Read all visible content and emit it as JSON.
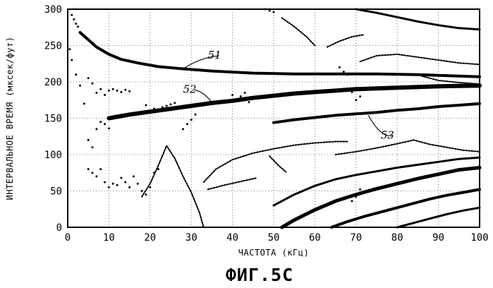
{
  "chart_data": {
    "type": "scatter",
    "title": "",
    "figure_caption": "ФИГ.5С",
    "xlabel": "ЧАСТОТА (кГц)",
    "ylabel": "ИНТЕРВАЛЬНОЕ ВРЕМЯ (мксек/фут)",
    "xlim": [
      0,
      100
    ],
    "ylim": [
      0,
      300
    ],
    "x_ticks": [
      0,
      10,
      20,
      30,
      40,
      50,
      60,
      70,
      80,
      90,
      100
    ],
    "y_ticks": [
      0,
      50,
      100,
      150,
      200,
      250,
      300
    ],
    "grid": true,
    "colors": {
      "ink": "#000000",
      "grid": "#555555",
      "background": "#ffffff"
    },
    "annotations": [
      {
        "label": "51",
        "x": 34,
        "y": 232,
        "target": [
          28,
          218
        ]
      },
      {
        "label": "52",
        "x": 28,
        "y": 185,
        "target": [
          35,
          172
        ]
      },
      {
        "label": "53",
        "x": 76,
        "y": 122,
        "target": [
          73,
          154
        ]
      }
    ],
    "series": [
      {
        "name": "51",
        "weight": 4,
        "points": [
          [
            3,
            268
          ],
          [
            5,
            258
          ],
          [
            7,
            248
          ],
          [
            10,
            238
          ],
          [
            13,
            231
          ],
          [
            17,
            226
          ],
          [
            22,
            221
          ],
          [
            28,
            218
          ],
          [
            35,
            215
          ],
          [
            45,
            212
          ],
          [
            55,
            211
          ],
          [
            65,
            211
          ],
          [
            75,
            211
          ],
          [
            85,
            210
          ],
          [
            95,
            208
          ],
          [
            100,
            207
          ]
        ]
      },
      {
        "name": "52",
        "weight": 6,
        "points": [
          [
            10,
            150
          ],
          [
            15,
            155
          ],
          [
            20,
            159
          ],
          [
            25,
            163
          ],
          [
            30,
            167
          ],
          [
            35,
            171
          ],
          [
            40,
            174
          ],
          [
            45,
            178
          ],
          [
            50,
            181
          ],
          [
            55,
            184
          ],
          [
            60,
            186
          ],
          [
            65,
            188
          ],
          [
            70,
            190
          ],
          [
            75,
            191
          ],
          [
            80,
            192
          ],
          [
            85,
            193
          ],
          [
            90,
            194
          ],
          [
            100,
            195
          ]
        ]
      },
      {
        "name": "53",
        "weight": 4,
        "points": [
          [
            50,
            144
          ],
          [
            55,
            148
          ],
          [
            60,
            151
          ],
          [
            65,
            154
          ],
          [
            70,
            156
          ],
          [
            75,
            158
          ],
          [
            80,
            161
          ],
          [
            85,
            163
          ],
          [
            90,
            166
          ],
          [
            95,
            168
          ],
          [
            100,
            170
          ]
        ]
      },
      {
        "name": "mode-top",
        "weight": 3,
        "points": [
          [
            70,
            300
          ],
          [
            75,
            295
          ],
          [
            80,
            289
          ],
          [
            85,
            283
          ],
          [
            90,
            278
          ],
          [
            95,
            274
          ],
          [
            100,
            272
          ]
        ]
      },
      {
        "name": "mode-band-a",
        "weight": 3,
        "points": [
          [
            50,
            30
          ],
          [
            55,
            45
          ],
          [
            60,
            57
          ],
          [
            65,
            66
          ],
          [
            70,
            72
          ],
          [
            75,
            77
          ],
          [
            80,
            82
          ],
          [
            85,
            86
          ],
          [
            90,
            90
          ],
          [
            95,
            94
          ],
          [
            100,
            96
          ]
        ]
      },
      {
        "name": "mode-band-b",
        "weight": 5,
        "points": [
          [
            52,
            0
          ],
          [
            55,
            10
          ],
          [
            60,
            24
          ],
          [
            65,
            36
          ],
          [
            70,
            45
          ],
          [
            75,
            53
          ],
          [
            80,
            60
          ],
          [
            85,
            67
          ],
          [
            90,
            73
          ],
          [
            95,
            79
          ],
          [
            100,
            82
          ]
        ]
      },
      {
        "name": "mode-band-c",
        "weight": 4,
        "points": [
          [
            64,
            0
          ],
          [
            68,
            8
          ],
          [
            72,
            15
          ],
          [
            76,
            21
          ],
          [
            80,
            27
          ],
          [
            84,
            33
          ],
          [
            88,
            39
          ],
          [
            92,
            44
          ],
          [
            96,
            48
          ],
          [
            100,
            52
          ]
        ]
      },
      {
        "name": "mode-band-d",
        "weight": 3,
        "points": [
          [
            80,
            0
          ],
          [
            84,
            6
          ],
          [
            88,
            12
          ],
          [
            92,
            18
          ],
          [
            96,
            23
          ],
          [
            100,
            27
          ]
        ]
      },
      {
        "name": "mode-mid",
        "weight": 2,
        "points": [
          [
            33,
            62
          ],
          [
            36,
            80
          ],
          [
            40,
            93
          ],
          [
            45,
            102
          ],
          [
            50,
            108
          ],
          [
            55,
            113
          ],
          [
            60,
            116
          ],
          [
            65,
            118
          ],
          [
            68,
            118
          ]
        ]
      },
      {
        "name": "mode-low-mid",
        "weight": 2,
        "points": [
          [
            34,
            52
          ],
          [
            38,
            58
          ],
          [
            42,
            63
          ],
          [
            46,
            68
          ]
        ]
      },
      {
        "name": "mode-right-a",
        "weight": 2,
        "points": [
          [
            65,
            100
          ],
          [
            70,
            104
          ],
          [
            75,
            109
          ],
          [
            80,
            115
          ],
          [
            84,
            120
          ],
          [
            88,
            114
          ],
          [
            92,
            110
          ],
          [
            96,
            106
          ],
          [
            100,
            104
          ]
        ]
      },
      {
        "name": "mode-right-b",
        "weight": 2,
        "points": [
          [
            63,
            248
          ],
          [
            66,
            256
          ],
          [
            69,
            262
          ],
          [
            72,
            265
          ]
        ]
      },
      {
        "name": "mode-right-c",
        "weight": 2,
        "points": [
          [
            71,
            228
          ],
          [
            75,
            236
          ],
          [
            80,
            238
          ],
          [
            85,
            234
          ],
          [
            90,
            230
          ],
          [
            95,
            226
          ],
          [
            100,
            224
          ]
        ]
      },
      {
        "name": "mode-diag-a",
        "weight": 2,
        "points": [
          [
            52,
            288
          ],
          [
            55,
            276
          ],
          [
            58,
            262
          ],
          [
            60,
            250
          ]
        ]
      },
      {
        "name": "mode-diag-b",
        "weight": 2,
        "points": [
          [
            49,
            98
          ],
          [
            51,
            86
          ],
          [
            53,
            76
          ]
        ]
      },
      {
        "name": "mode-right-d",
        "weight": 2,
        "points": [
          [
            86,
            208
          ],
          [
            90,
            202
          ],
          [
            95,
            199
          ],
          [
            100,
            197
          ]
        ]
      },
      {
        "name": "scatter-spike",
        "weight": 2,
        "points": [
          [
            18,
            42
          ],
          [
            20,
            60
          ],
          [
            22,
            85
          ],
          [
            24,
            112
          ],
          [
            26,
            95
          ],
          [
            28,
            70
          ],
          [
            30,
            48
          ],
          [
            32,
            20
          ],
          [
            33,
            0
          ]
        ]
      }
    ],
    "scatter_points": [
      [
        1,
        292
      ],
      [
        1.5,
        286
      ],
      [
        2,
        280
      ],
      [
        2.5,
        276
      ],
      [
        0.5,
        245
      ],
      [
        1,
        230
      ],
      [
        2,
        210
      ],
      [
        3,
        195
      ],
      [
        4,
        170
      ],
      [
        5,
        205
      ],
      [
        6,
        198
      ],
      [
        7,
        185
      ],
      [
        8,
        190
      ],
      [
        9,
        182
      ],
      [
        10,
        188
      ],
      [
        11,
        190
      ],
      [
        12,
        188
      ],
      [
        13,
        186
      ],
      [
        14,
        189
      ],
      [
        15,
        187
      ],
      [
        5,
        120
      ],
      [
        6,
        110
      ],
      [
        7,
        135
      ],
      [
        8,
        145
      ],
      [
        9,
        142
      ],
      [
        10,
        136
      ],
      [
        5,
        80
      ],
      [
        6,
        75
      ],
      [
        7,
        70
      ],
      [
        8,
        80
      ],
      [
        9,
        62
      ],
      [
        10,
        55
      ],
      [
        11,
        60
      ],
      [
        12,
        58
      ],
      [
        13,
        68
      ],
      [
        14,
        62
      ],
      [
        15,
        55
      ],
      [
        16,
        70
      ],
      [
        17,
        60
      ],
      [
        18,
        50
      ],
      [
        19,
        45
      ],
      [
        20,
        55
      ],
      [
        21,
        75
      ],
      [
        22,
        80
      ],
      [
        19,
        168
      ],
      [
        20,
        160
      ],
      [
        21,
        163
      ],
      [
        22,
        162
      ],
      [
        23,
        165
      ],
      [
        24,
        167
      ],
      [
        25,
        169
      ],
      [
        26,
        171
      ],
      [
        28,
        135
      ],
      [
        29,
        142
      ],
      [
        30,
        148
      ],
      [
        31,
        155
      ],
      [
        40,
        182
      ],
      [
        41,
        176
      ],
      [
        42,
        180
      ],
      [
        43,
        185
      ],
      [
        44,
        172
      ],
      [
        66,
        220
      ],
      [
        67,
        214
      ],
      [
        68,
        210
      ],
      [
        69,
        186
      ],
      [
        70,
        175
      ],
      [
        71,
        180
      ],
      [
        70,
        42
      ],
      [
        71,
        52
      ],
      [
        69,
        36
      ],
      [
        48,
        300
      ],
      [
        49,
        298
      ],
      [
        50,
        296
      ]
    ]
  },
  "rotated_ylabel_note": ""
}
